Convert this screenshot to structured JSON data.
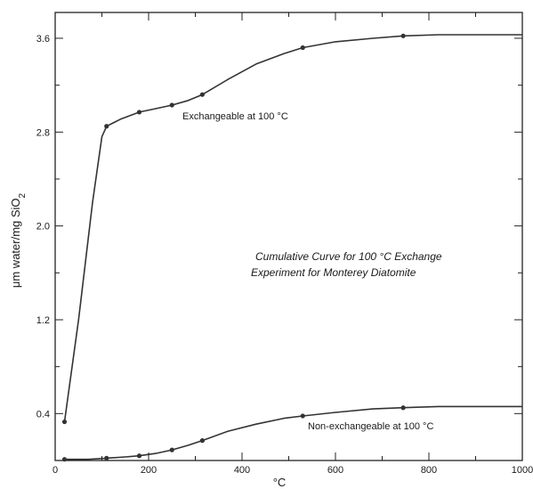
{
  "chart_data": {
    "type": "line",
    "title_lines": [
      "Cumulative Curve for 100 °C Exchange",
      "Experiment for Monterey Diatomite"
    ],
    "xlabel": "°C",
    "ylabel_main": "μm water/mg SiO",
    "ylabel_sub": "2",
    "xlim": [
      0,
      1000
    ],
    "ylim": [
      0,
      3.82
    ],
    "xticks": [
      0,
      200,
      400,
      600,
      800,
      1000
    ],
    "xtick_labels": [
      "0",
      "200",
      "400",
      "600",
      "800",
      "1000"
    ],
    "yticks": [
      0.4,
      1.2,
      2.0,
      2.8,
      3.6
    ],
    "ytick_labels": [
      "0.4",
      "1.2",
      "2.0",
      "2.8",
      "3.6"
    ],
    "grid": false,
    "colors": {
      "line": "#333333",
      "axis": "#222222",
      "marker": "#333333"
    },
    "series": [
      {
        "name": "Exchangeable at 100 °C",
        "points": [
          [
            20,
            0.33
          ],
          [
            110,
            2.85
          ],
          [
            180,
            2.97
          ],
          [
            250,
            3.03
          ],
          [
            315,
            3.12
          ],
          [
            530,
            3.52
          ],
          [
            745,
            3.62
          ]
        ],
        "curve": [
          [
            20,
            0.33
          ],
          [
            50,
            1.2
          ],
          [
            80,
            2.2
          ],
          [
            100,
            2.76
          ],
          [
            110,
            2.85
          ],
          [
            140,
            2.91
          ],
          [
            180,
            2.97
          ],
          [
            215,
            3.0
          ],
          [
            250,
            3.03
          ],
          [
            285,
            3.07
          ],
          [
            315,
            3.12
          ],
          [
            370,
            3.25
          ],
          [
            430,
            3.38
          ],
          [
            490,
            3.47
          ],
          [
            530,
            3.52
          ],
          [
            600,
            3.57
          ],
          [
            680,
            3.6
          ],
          [
            745,
            3.62
          ],
          [
            820,
            3.63
          ],
          [
            900,
            3.63
          ],
          [
            1000,
            3.63
          ]
        ]
      },
      {
        "name": "Non-exchangeable at 100 °C",
        "points": [
          [
            20,
            0.01
          ],
          [
            110,
            0.02
          ],
          [
            180,
            0.04
          ],
          [
            250,
            0.09
          ],
          [
            315,
            0.17
          ],
          [
            530,
            0.38
          ],
          [
            745,
            0.45
          ]
        ],
        "curve": [
          [
            20,
            0.01
          ],
          [
            70,
            0.01
          ],
          [
            110,
            0.02
          ],
          [
            150,
            0.03
          ],
          [
            180,
            0.04
          ],
          [
            215,
            0.06
          ],
          [
            250,
            0.09
          ],
          [
            285,
            0.13
          ],
          [
            315,
            0.17
          ],
          [
            370,
            0.25
          ],
          [
            430,
            0.31
          ],
          [
            490,
            0.36
          ],
          [
            530,
            0.38
          ],
          [
            600,
            0.41
          ],
          [
            680,
            0.44
          ],
          [
            745,
            0.45
          ],
          [
            820,
            0.46
          ],
          [
            900,
            0.46
          ],
          [
            1000,
            0.46
          ]
        ]
      }
    ]
  }
}
